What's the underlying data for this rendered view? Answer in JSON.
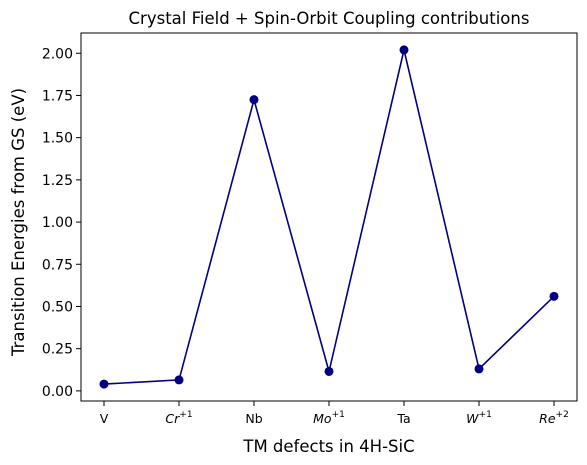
{
  "chart_data": {
    "type": "line",
    "title": "Crystal Field + Spin-Orbit Coupling contributions",
    "xlabel": "TM defects in 4H-SiC",
    "ylabel": "Transition Energies from GS (eV)",
    "categories": [
      {
        "base": "V",
        "sup": "",
        "italic": false
      },
      {
        "base": "Cr",
        "sup": "+1",
        "italic": true
      },
      {
        "base": "Nb",
        "sup": "",
        "italic": false
      },
      {
        "base": "Mo",
        "sup": "+1",
        "italic": true
      },
      {
        "base": "Ta",
        "sup": "",
        "italic": false
      },
      {
        "base": "W",
        "sup": "+1",
        "italic": true
      },
      {
        "base": "Re",
        "sup": "+2",
        "italic": true
      }
    ],
    "values": [
      0.04,
      0.065,
      1.725,
      0.115,
      2.02,
      0.13,
      0.56
    ],
    "ylim": [
      -0.06,
      2.12
    ],
    "yticks": [
      "0.00",
      "0.25",
      "0.50",
      "0.75",
      "1.00",
      "1.25",
      "1.50",
      "1.75",
      "2.00"
    ],
    "grid": false,
    "legend": "none",
    "line_color": "#000080",
    "marker_color": "#000080"
  }
}
